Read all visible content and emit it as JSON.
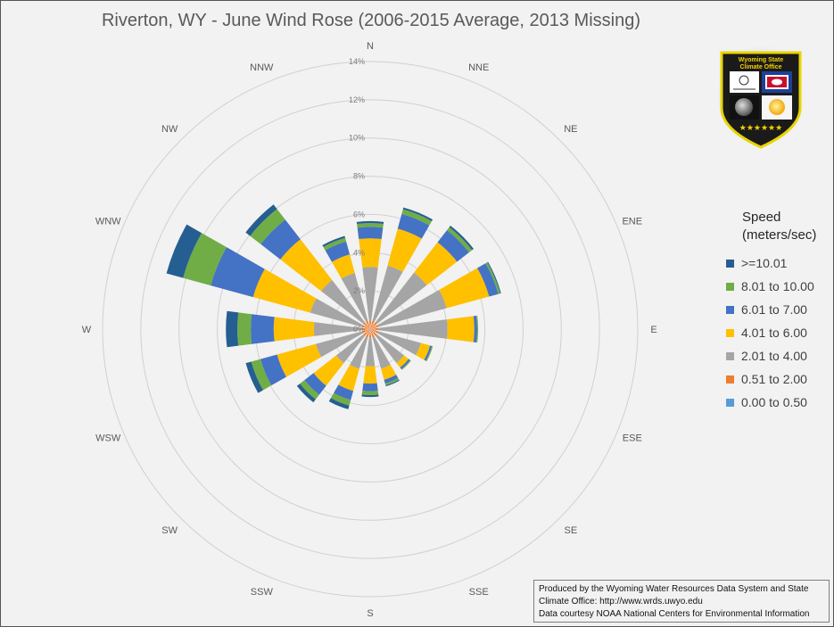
{
  "chart_data": {
    "type": "wind-rose",
    "title": "Riverton, WY - June Wind Rose (2006-2015 Average, 2013 Missing)",
    "directions": [
      "N",
      "NNE",
      "NE",
      "ENE",
      "E",
      "ESE",
      "SE",
      "SSE",
      "S",
      "SSW",
      "SW",
      "WSW",
      "W",
      "WNW",
      "NW",
      "NNW"
    ],
    "r_ticks": [
      "0%",
      "2%",
      "4%",
      "6%",
      "8%",
      "10%",
      "12%",
      "14%"
    ],
    "r_max": 14,
    "legend_title": "Speed\n(meters/sec)",
    "colors": [
      "#5b9bd5",
      "#ed7d31",
      "#a5a5a5",
      "#ffc000",
      "#4472c4",
      "#70ad47",
      "#255e91"
    ],
    "series": [
      {
        "name": "0.00 to 0.50",
        "values": [
          0.05,
          0.05,
          0.05,
          0.05,
          0.05,
          0.05,
          0.05,
          0.05,
          0.05,
          0.05,
          0.05,
          0.05,
          0.05,
          0.05,
          0.05,
          0.05
        ]
      },
      {
        "name": "0.51 to 2.00",
        "values": [
          0.4,
          0.4,
          0.4,
          0.4,
          0.4,
          0.4,
          0.4,
          0.4,
          0.4,
          0.4,
          0.4,
          0.4,
          0.4,
          0.4,
          0.4,
          0.4
        ]
      },
      {
        "name": "2.01 to 4.00",
        "values": [
          2.8,
          3.0,
          3.3,
          3.7,
          3.6,
          2.3,
          1.8,
          1.7,
          1.5,
          1.7,
          1.8,
          2.5,
          2.5,
          2.8,
          2.8,
          2.6
        ]
      },
      {
        "name": "4.01 to 6.00",
        "values": [
          1.5,
          2.0,
          2.0,
          2.3,
          1.4,
          0.5,
          0.3,
          0.6,
          0.9,
          1.2,
          1.5,
          2.1,
          2.1,
          3.1,
          2.7,
          1.0
        ]
      },
      {
        "name": "6.01 to 7.00",
        "values": [
          0.6,
          0.8,
          0.8,
          0.5,
          0.15,
          0.1,
          0.1,
          0.2,
          0.4,
          0.5,
          0.6,
          0.9,
          1.2,
          2.3,
          1.3,
          0.7
        ]
      },
      {
        "name": "8.01 to 10.00",
        "values": [
          0.2,
          0.25,
          0.2,
          0.1,
          0.05,
          0.05,
          0.05,
          0.1,
          0.2,
          0.3,
          0.3,
          0.5,
          0.7,
          1.5,
          0.7,
          0.2
        ]
      },
      {
        "name": ">=10.01",
        "values": [
          0.1,
          0.1,
          0.1,
          0.05,
          0.0,
          0.0,
          0.0,
          0.05,
          0.1,
          0.2,
          0.2,
          0.3,
          0.6,
          0.9,
          0.3,
          0.1
        ]
      }
    ]
  },
  "legend_items": [
    ">=10.01",
    "8.01 to 10.00",
    "6.01 to 7.00",
    "4.01 to 6.00",
    "2.01 to 4.00",
    "0.51 to 2.00",
    "0.00 to 0.50"
  ],
  "logo": {
    "line1": "Wyoming State",
    "line2": "Climate Office"
  },
  "credit": {
    "line1": "Produced by the Wyoming Water Resources Data System and State",
    "line2": "Climate Office: http://www.wrds.uwyo.edu",
    "line3": "Data courtesy NOAA National Centers for Environmental Information"
  }
}
